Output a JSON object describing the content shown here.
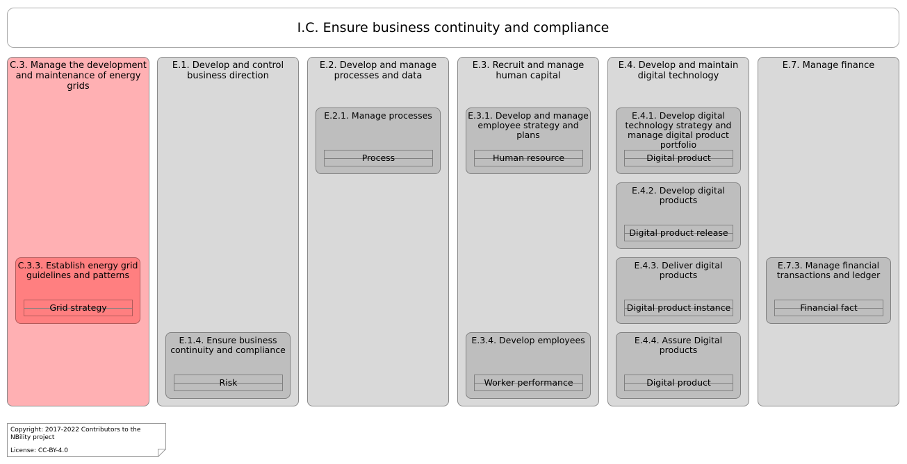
{
  "title": "I.C. Ensure business continuity and compliance",
  "columns": [
    {
      "title": "C.3. Manage the development and maintenance of energy grids",
      "boxes": [
        {
          "title": "C.3.3. Establish energy grid guidelines and patterns",
          "entity": "Grid strategy"
        }
      ]
    },
    {
      "title": "E.1. Develop and control business direction",
      "boxes": [
        {
          "title": "E.1.4. Ensure business continuity and compliance",
          "entity": "Risk"
        }
      ]
    },
    {
      "title": "E.2. Develop and manage processes and data",
      "boxes": [
        {
          "title": "E.2.1. Manage processes",
          "entity": "Process"
        }
      ]
    },
    {
      "title": "E.3. Recruit and manage human capital",
      "boxes": [
        {
          "title": "E.3.1. Develop and manage employee strategy and plans",
          "entity": "Human resource"
        },
        {
          "title": "E.3.4. Develop employees",
          "entity": "Worker performance"
        }
      ]
    },
    {
      "title": "E.4. Develop and maintain digital technology",
      "boxes": [
        {
          "title": "E.4.1. Develop digital technology strategy and manage digital product portfolio",
          "entity": "Digital product"
        },
        {
          "title": "E.4.2. Develop digital products",
          "entity": "Digital product release"
        },
        {
          "title": "E.4.3. Deliver digital products",
          "entity": "Digital product instance"
        },
        {
          "title": "E.4.4. Assure Digital products",
          "entity": "Digital product"
        }
      ]
    },
    {
      "title": "E.7. Manage finance",
      "boxes": [
        {
          "title": "E.7.3. Manage financial transactions and ledger",
          "entity": "Financial fact"
        }
      ]
    }
  ],
  "footer": {
    "copyright": "Copyright: 2017-2022 Contributors to the NBility project",
    "license": "License: CC-BY-4.0"
  },
  "colors": {
    "highlight_column": "#ffb0b3",
    "highlight_box": "#ff7f80",
    "column": "#d9d9d9",
    "box": "#bebebe"
  }
}
